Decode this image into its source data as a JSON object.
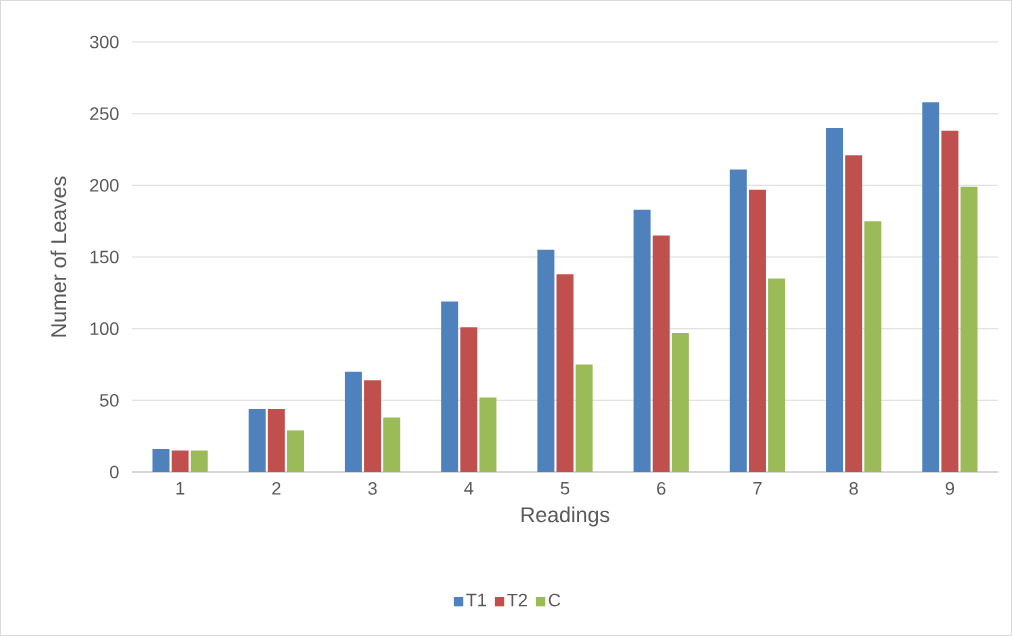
{
  "chart_data": {
    "type": "bar",
    "xlabel": "Readings",
    "ylabel": "Numer of Leaves",
    "categories": [
      "1",
      "2",
      "3",
      "4",
      "5",
      "6",
      "7",
      "8",
      "9"
    ],
    "series": [
      {
        "name": "T1",
        "color": "#4f81bd",
        "values": [
          16,
          44,
          70,
          119,
          155,
          183,
          211,
          240,
          258
        ]
      },
      {
        "name": "T2",
        "color": "#c0504d",
        "values": [
          15,
          44,
          64,
          101,
          138,
          165,
          197,
          221,
          238
        ]
      },
      {
        "name": "C",
        "color": "#9bbb59",
        "values": [
          15,
          29,
          38,
          52,
          75,
          97,
          135,
          175,
          199
        ]
      }
    ],
    "ylim": [
      0,
      300
    ],
    "yticks": [
      0,
      50,
      100,
      150,
      200,
      250,
      300
    ],
    "grid": "y",
    "legend": "bottom"
  }
}
